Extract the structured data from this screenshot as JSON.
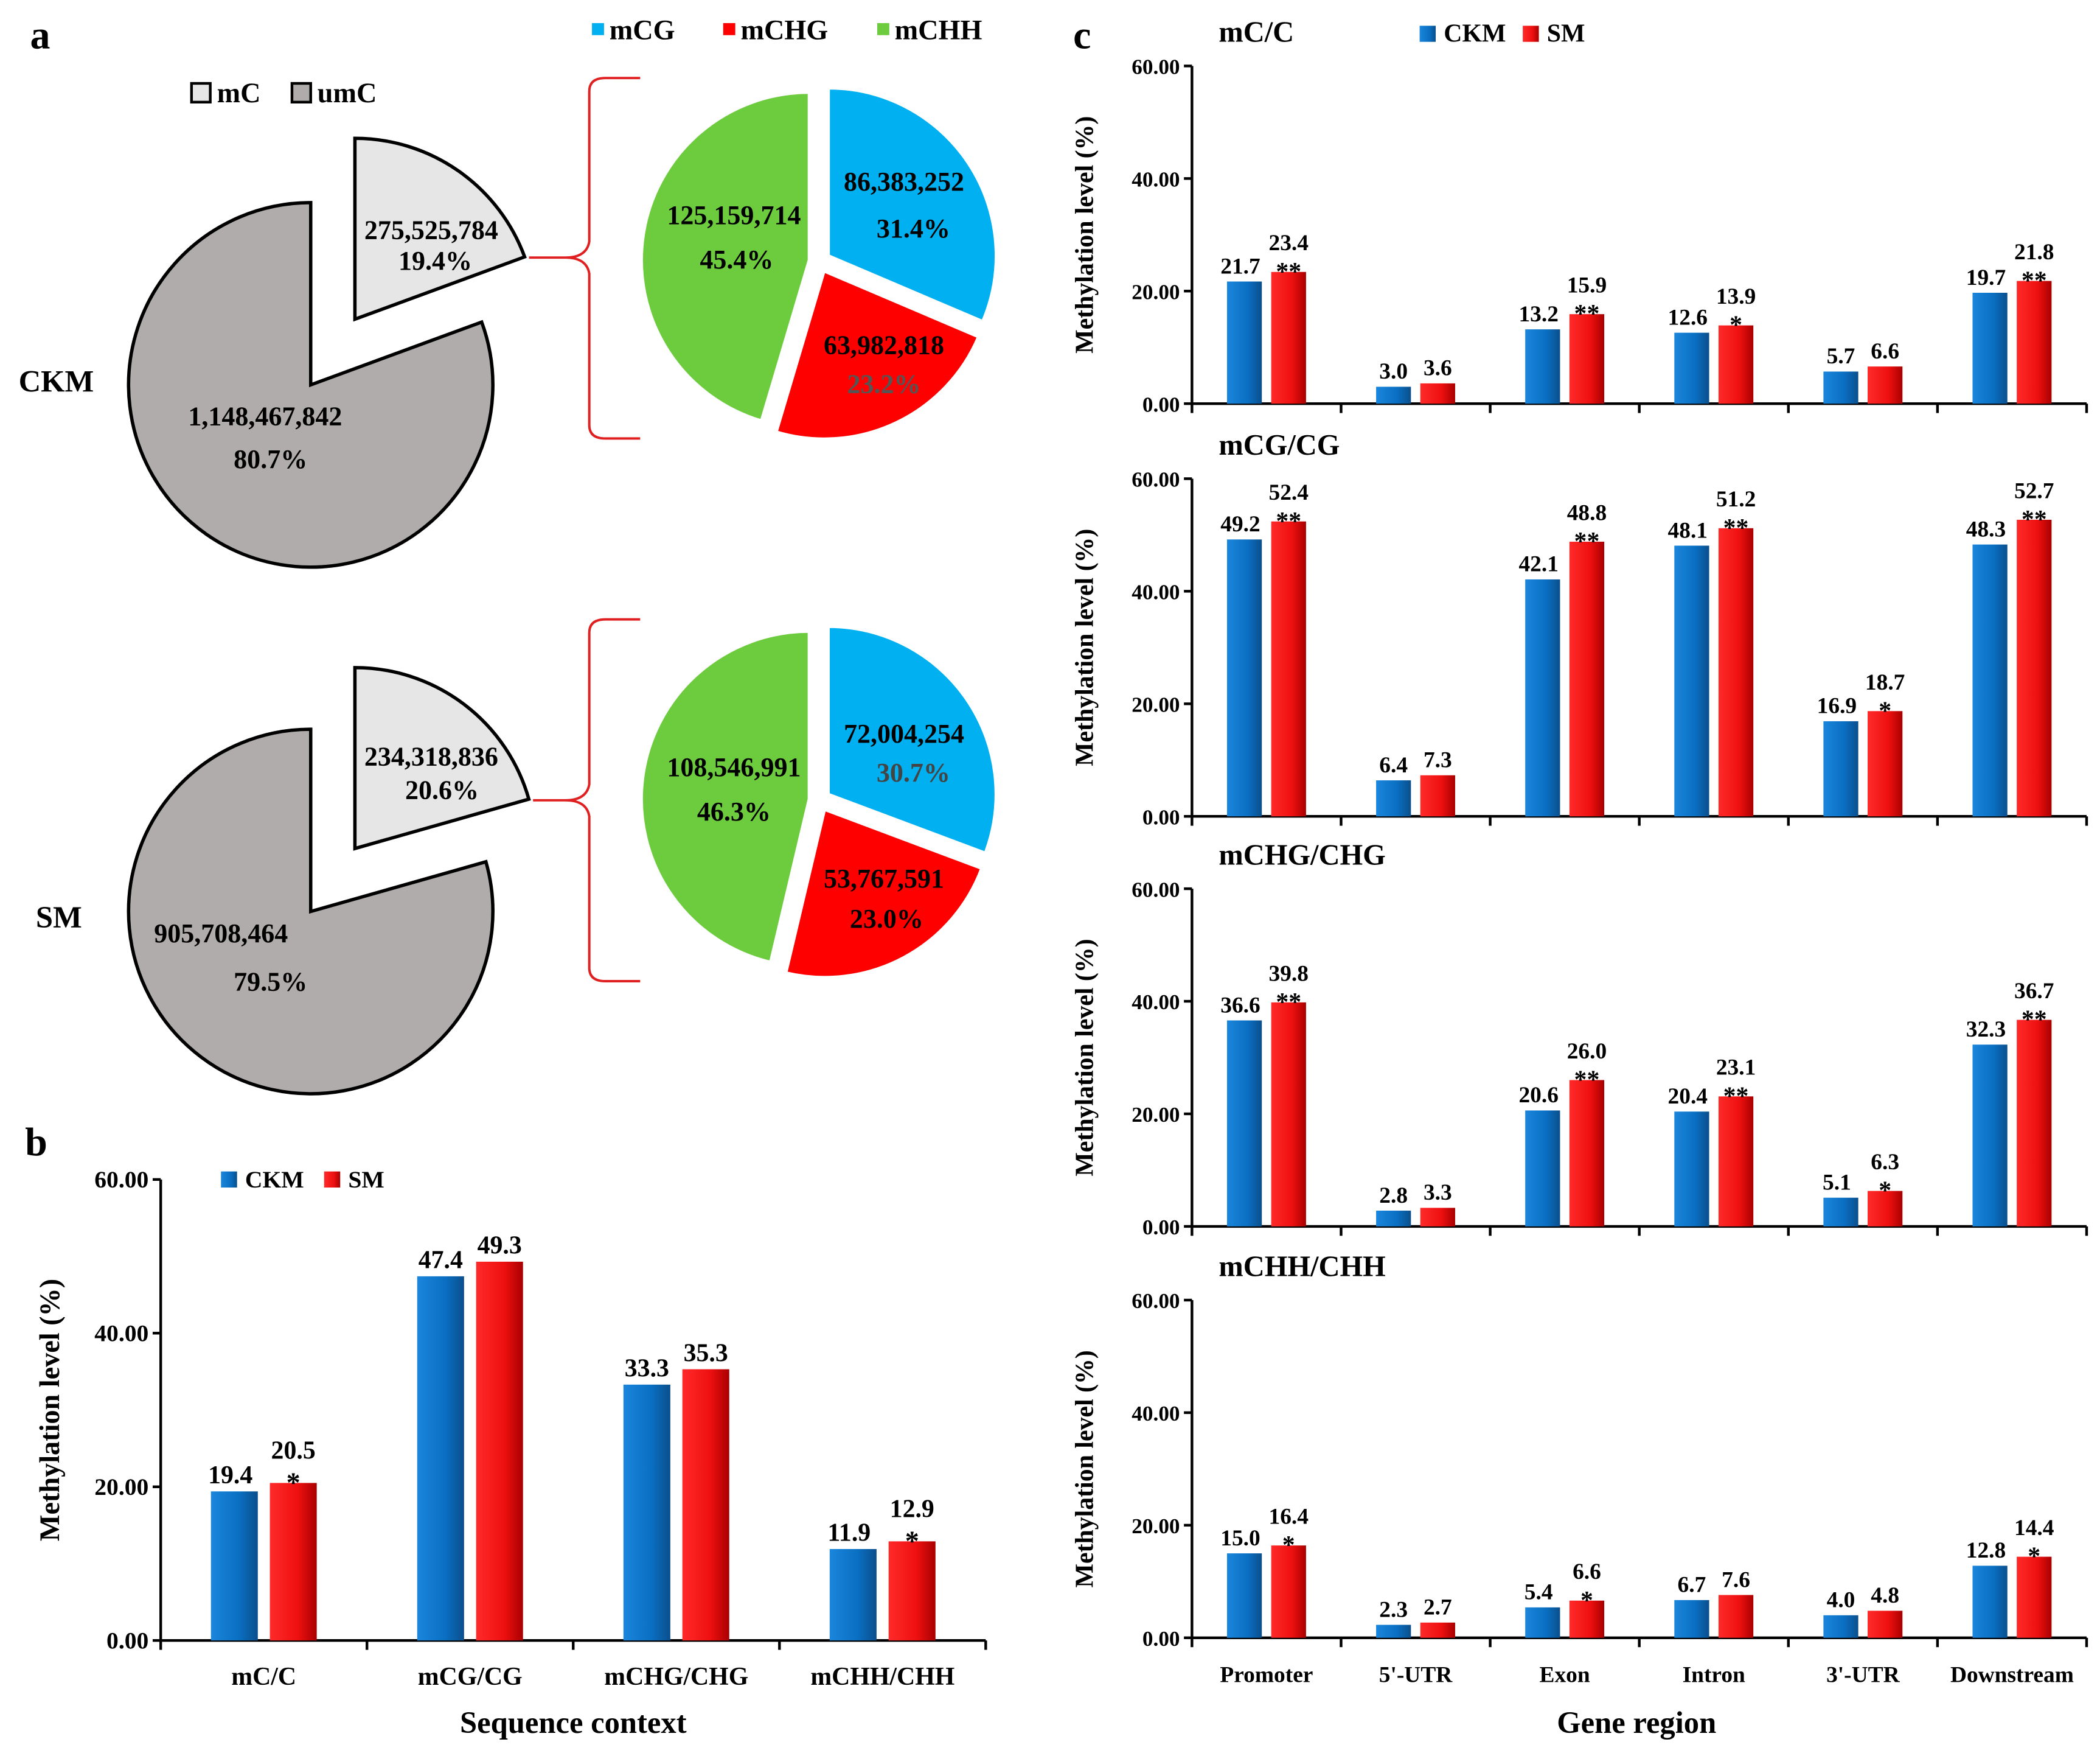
{
  "panel_labels": {
    "a": "a",
    "b": "b",
    "c": "c"
  },
  "colors": {
    "ckm": "#0a6fc2",
    "sm": "#ee1010",
    "mC": "#e6e6e6",
    "umC": "#b0acac",
    "mCG": "#00b0f0",
    "mCHG": "#ff0000",
    "mCHH": "#6dcc3e",
    "brace": "#e02020"
  },
  "chart_data": [
    {
      "type": "pie",
      "id": "a",
      "legend_top": [
        "mCG",
        "mCHG",
        "mCHH"
      ],
      "legend_left": [
        "mC",
        "umC"
      ],
      "groups": [
        {
          "name": "CKM",
          "total": {
            "mC": {
              "count": "275,525,784",
              "pct": "19.4%",
              "value": 19.4
            },
            "umC": {
              "count": "1,148,467,842",
              "pct": "80.7%",
              "value": 80.7
            }
          },
          "context": {
            "mCG": {
              "count": "86,383,252",
              "pct": "31.4%",
              "value": 31.4
            },
            "mCHG": {
              "count": "63,982,818",
              "pct": "23.2%",
              "value": 23.2
            },
            "mCHH": {
              "count": "125,159,714",
              "pct": "45.4%",
              "value": 45.4
            }
          }
        },
        {
          "name": "SM",
          "total": {
            "mC": {
              "count": "234,318,836",
              "pct": "20.6%",
              "value": 20.6
            },
            "umC": {
              "count": "905,708,464",
              "pct": "79.5%",
              "value": 79.5
            }
          },
          "context": {
            "mCG": {
              "count": "72,004,254",
              "pct": "30.7%",
              "value": 30.7
            },
            "mCHG": {
              "count": "53,767,591",
              "pct": "23.0%",
              "value": 23.0
            },
            "mCHH": {
              "count": "108,546,991",
              "pct": "46.3%",
              "value": 46.3
            }
          }
        }
      ]
    },
    {
      "type": "bar",
      "id": "b",
      "title": "",
      "xlabel": "Sequence context",
      "ylabel": "Methylation level (%)",
      "ylim": [
        0,
        60
      ],
      "yticks": [
        "0.00",
        "20.00",
        "40.00",
        "60.00"
      ],
      "legend": [
        "CKM",
        "SM"
      ],
      "categories": [
        "mC/C",
        "mCG/CG",
        "mCHG/CHG",
        "mCHH/CHH"
      ],
      "series": [
        {
          "name": "CKM",
          "values": [
            19.4,
            47.4,
            33.3,
            11.9
          ],
          "labels": [
            "19.4",
            "47.4",
            "33.3",
            "11.9"
          ]
        },
        {
          "name": "SM",
          "values": [
            20.5,
            49.3,
            35.3,
            12.9
          ],
          "labels": [
            "20.5",
            "49.3",
            "35.3",
            "12.9"
          ]
        }
      ],
      "significance": [
        "*",
        "",
        "",
        "*"
      ]
    },
    {
      "type": "bar",
      "id": "c",
      "xlabel": "Gene region",
      "ylabel": "Methylation level (%)",
      "ylim": [
        0,
        60
      ],
      "yticks": [
        "0.00",
        "20.00",
        "40.00",
        "60.00"
      ],
      "legend": [
        "CKM",
        "SM"
      ],
      "categories": [
        "Promoter",
        "5'-UTR",
        "Exon",
        "Intron",
        "3'-UTR",
        "Downstream"
      ],
      "subplots": [
        {
          "title": "mC/C",
          "series": [
            {
              "name": "CKM",
              "values": [
                21.7,
                3.0,
                13.2,
                12.6,
                5.7,
                19.7
              ],
              "labels": [
                "21.7",
                "3.0",
                "13.2",
                "12.6",
                "5.7",
                "19.7"
              ]
            },
            {
              "name": "SM",
              "values": [
                23.4,
                3.6,
                15.9,
                13.9,
                6.6,
                21.8
              ],
              "labels": [
                "23.4",
                "3.6",
                "15.9",
                "13.9",
                "6.6",
                "21.8"
              ]
            }
          ],
          "significance": [
            "**",
            "",
            "**",
            "*",
            "",
            "**"
          ]
        },
        {
          "title": "mCG/CG",
          "series": [
            {
              "name": "CKM",
              "values": [
                49.2,
                6.4,
                42.1,
                48.1,
                16.9,
                48.3
              ],
              "labels": [
                "49.2",
                "6.4",
                "42.1",
                "48.1",
                "16.9",
                "48.3"
              ]
            },
            {
              "name": "SM",
              "values": [
                52.4,
                7.3,
                48.8,
                51.2,
                18.7,
                52.7
              ],
              "labels": [
                "52.4",
                "7.3",
                "48.8",
                "51.2",
                "18.7",
                "52.7"
              ]
            }
          ],
          "significance": [
            "**",
            "",
            "**",
            "**",
            "*",
            "**"
          ]
        },
        {
          "title": "mCHG/CHG",
          "series": [
            {
              "name": "CKM",
              "values": [
                36.6,
                2.8,
                20.6,
                20.4,
                5.1,
                32.3
              ],
              "labels": [
                "36.6",
                "2.8",
                "20.6",
                "20.4",
                "5.1",
                "32.3"
              ]
            },
            {
              "name": "SM",
              "values": [
                39.8,
                3.3,
                26.0,
                23.1,
                6.3,
                36.7
              ],
              "labels": [
                "39.8",
                "3.3",
                "26.0",
                "23.1",
                "6.3",
                "36.7"
              ]
            }
          ],
          "significance": [
            "**",
            "",
            "**",
            "**",
            "*",
            "**"
          ]
        },
        {
          "title": "mCHH/CHH",
          "series": [
            {
              "name": "CKM",
              "values": [
                15.0,
                2.3,
                5.4,
                6.7,
                4.0,
                12.8
              ],
              "labels": [
                "15.0",
                "2.3",
                "5.4",
                "6.7",
                "4.0",
                "12.8"
              ]
            },
            {
              "name": "SM",
              "values": [
                16.4,
                2.7,
                6.6,
                7.6,
                4.8,
                14.4
              ],
              "labels": [
                "16.4",
                "2.7",
                "6.6",
                "7.6",
                "4.8",
                "14.4"
              ]
            }
          ],
          "significance": [
            "*",
            "",
            "*",
            "",
            "",
            "*"
          ]
        }
      ]
    }
  ]
}
